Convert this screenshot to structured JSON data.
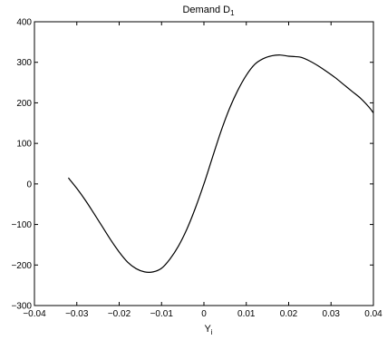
{
  "chart_data": {
    "type": "line",
    "title": "Demand D",
    "title_subscript": "1",
    "xlabel": "Y",
    "xlabel_subscript": "i",
    "ylabel": "",
    "xlim": [
      -0.04,
      0.04
    ],
    "ylim": [
      -300,
      400
    ],
    "grid": false,
    "xticks": [
      -0.04,
      -0.03,
      -0.02,
      -0.01,
      0,
      0.01,
      0.02,
      0.03,
      0.04
    ],
    "xtick_labels": [
      "−0.04",
      "−0.03",
      "−0.02",
      "−0.01",
      "0",
      "0.01",
      "0.02",
      "0.03",
      "0.04"
    ],
    "yticks": [
      -300,
      -200,
      -100,
      0,
      100,
      200,
      300,
      400
    ],
    "ytick_labels": [
      "−300",
      "−200",
      "−100",
      "0",
      "100",
      "200",
      "300",
      "400"
    ],
    "series": [
      {
        "color": "#000000",
        "x": [
          -0.032,
          -0.03,
          -0.028,
          -0.026,
          -0.024,
          -0.022,
          -0.02,
          -0.018,
          -0.016,
          -0.014,
          -0.012,
          -0.01,
          -0.008,
          -0.006,
          -0.004,
          -0.002,
          0.0,
          0.002,
          0.004,
          0.006,
          0.008,
          0.01,
          0.012,
          0.014,
          0.016,
          0.018,
          0.02,
          0.0215,
          0.023,
          0.025,
          0.027,
          0.029,
          0.031,
          0.033,
          0.035,
          0.037,
          0.039,
          0.04
        ],
        "y": [
          15,
          -11,
          -40,
          -72,
          -105,
          -138,
          -168,
          -193,
          -209,
          -217,
          -217,
          -208,
          -185,
          -153,
          -111,
          -59,
          0,
          65,
          129,
          185,
          231,
          268,
          295,
          309,
          316,
          318,
          315,
          314,
          312,
          303,
          291,
          277,
          262,
          245,
          228,
          211,
          189,
          175
        ]
      }
    ]
  }
}
